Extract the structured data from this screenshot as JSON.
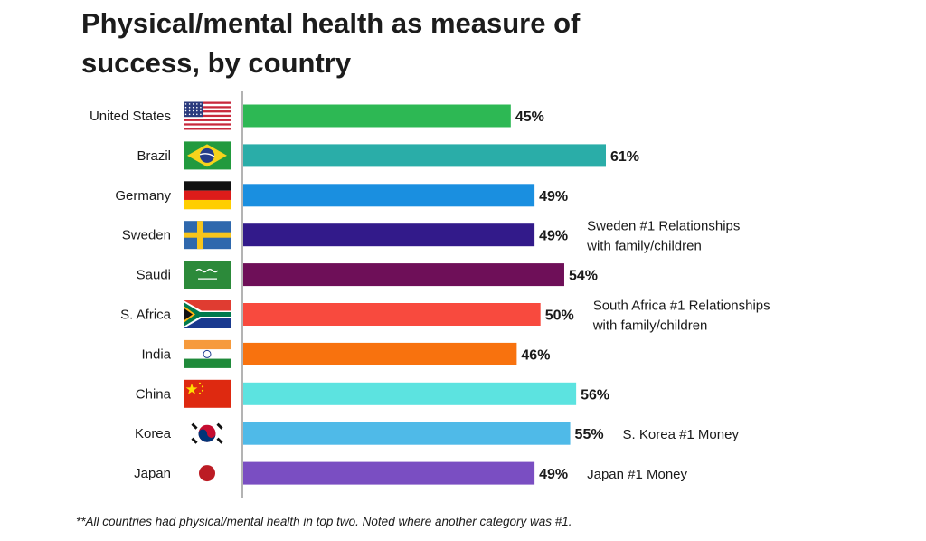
{
  "chart_data": {
    "type": "bar",
    "orientation": "horizontal",
    "title": "Physical/mental health as measure of success, by country",
    "categories": [
      "United States",
      "Brazil",
      "Germany",
      "Sweden",
      "Saudi",
      "S. Africa",
      "India",
      "China",
      "Korea",
      "Japan"
    ],
    "values": [
      45,
      61,
      49,
      49,
      54,
      50,
      46,
      56,
      55,
      49
    ],
    "value_labels": [
      "45%",
      "61%",
      "49%",
      "49%",
      "54%",
      "50%",
      "46%",
      "56%",
      "55%",
      "49%"
    ],
    "bar_colors": [
      "#2db854",
      "#2aada8",
      "#1a8fe0",
      "#321a8a",
      "#6e0f58",
      "#f84a3e",
      "#f8720e",
      "#5ce3e0",
      "#4fbae8",
      "#7a4ec2"
    ],
    "flag_icons": [
      "united-states-flag-icon",
      "brazil-flag-icon",
      "germany-flag-icon",
      "sweden-flag-icon",
      "saudi-arabia-flag-icon",
      "south-africa-flag-icon",
      "india-flag-icon",
      "china-flag-icon",
      "korea-flag-icon",
      "japan-flag-icon"
    ],
    "annotations": [
      {
        "category": "Sweden",
        "lines": [
          "Sweden #1 Relationships",
          "with family/children"
        ]
      },
      {
        "category": "S. Africa",
        "lines": [
          "South Africa #1 Relationships",
          "with family/children"
        ]
      },
      {
        "category": "Korea",
        "lines": [
          "S. Korea #1 Money"
        ]
      },
      {
        "category": "Japan",
        "lines": [
          "Japan #1 Money"
        ]
      }
    ],
    "xlim": [
      0,
      61
    ],
    "grid": false,
    "legend": "none"
  },
  "footnote": "**All countries had physical/mental health in top two. Noted where another category was #1."
}
